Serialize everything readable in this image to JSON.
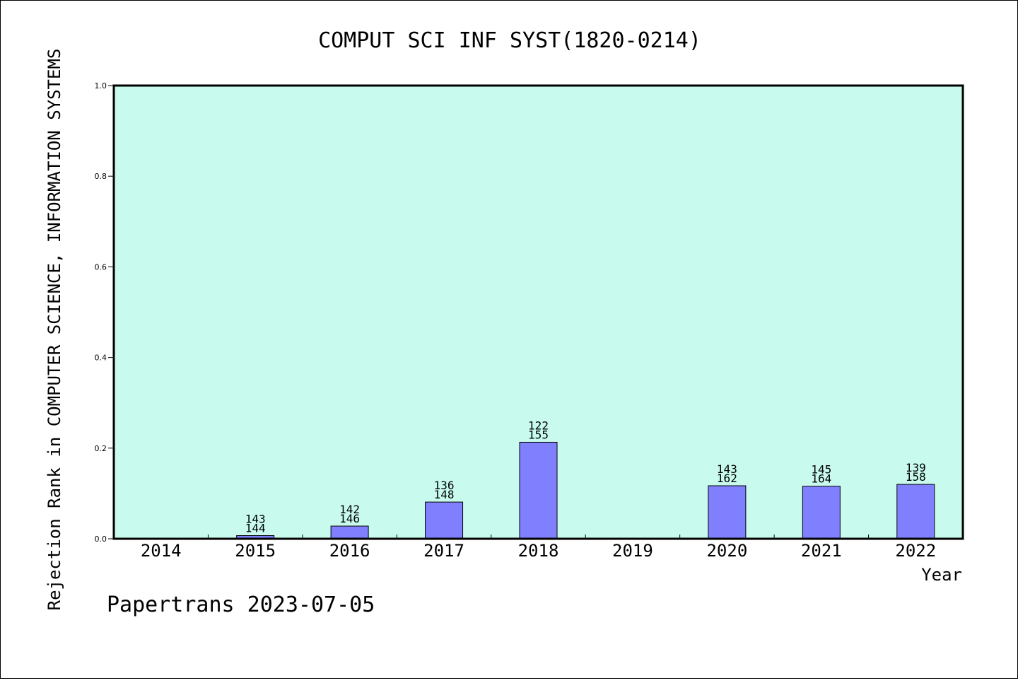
{
  "chart_data": {
    "type": "bar",
    "title": "COMPUT SCI INF SYST(1820-0214)",
    "ylabel": "Rejection Rank in COMPUTER SCIENCE, INFORMATION SYSTEMS",
    "xlabel": "Year",
    "categories": [
      "2014",
      "2015",
      "2016",
      "2017",
      "2018",
      "2019",
      "2020",
      "2021",
      "2022"
    ],
    "values": [
      0,
      0.007,
      0.028,
      0.081,
      0.213,
      0,
      0.117,
      0.116,
      0.12
    ],
    "bar_labels": [
      null,
      [
        "143",
        "144"
      ],
      [
        "142",
        "146"
      ],
      [
        "136",
        "148"
      ],
      [
        "122",
        "155"
      ],
      null,
      [
        "143",
        "162"
      ],
      [
        "145",
        "164"
      ],
      [
        "139",
        "158"
      ]
    ],
    "ylim": [
      0,
      1.0
    ],
    "yticks": [
      "0.0",
      "0.2",
      "0.4",
      "0.6",
      "0.8",
      "1.0"
    ],
    "grid": false,
    "colors": {
      "plot_bg": "#c8fbee",
      "bar": "#8080ff"
    }
  },
  "footer": "Papertrans 2023-07-05"
}
